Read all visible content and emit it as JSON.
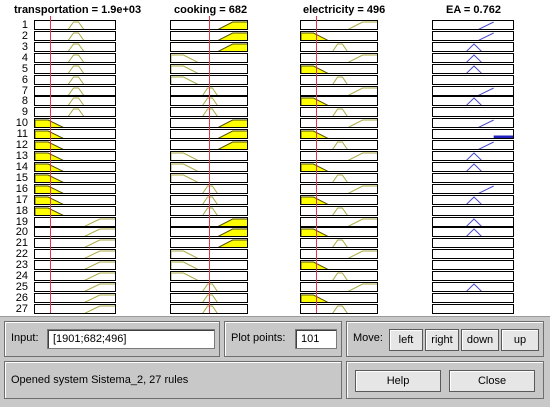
{
  "headers": {
    "transportation": "transportation = 1.9e+03",
    "cooking": "cooking = 682",
    "electricity": "electricity = 496",
    "ea": "EA = 0.762"
  },
  "rule_numbers": [
    "1",
    "2",
    "3",
    "4",
    "5",
    "6",
    "7",
    "8",
    "9",
    "10",
    "11",
    "12",
    "13",
    "14",
    "15",
    "16",
    "17",
    "18",
    "19",
    "20",
    "21",
    "22",
    "23",
    "24",
    "25",
    "26",
    "27"
  ],
  "input_value_fractions": {
    "transportation": 0.2,
    "cooking": 0.5,
    "electricity": 0.2
  },
  "rules": {
    "transportation_mf": [
      "M",
      "M",
      "M",
      "M",
      "M",
      "M",
      "M",
      "M",
      "M",
      "L",
      "L",
      "L",
      "L",
      "L",
      "L",
      "L",
      "L",
      "L",
      "H",
      "H",
      "H",
      "H",
      "H",
      "H",
      "H",
      "H",
      "H"
    ],
    "cooking_mf": [
      "H",
      "H",
      "H",
      "L",
      "L",
      "L",
      "M",
      "M",
      "M",
      "H",
      "H",
      "H",
      "L",
      "L",
      "L",
      "M",
      "M",
      "M",
      "H",
      "H",
      "H",
      "L",
      "L",
      "L",
      "M",
      "M",
      "M"
    ],
    "electricity_mf": [
      "H",
      "L",
      "M",
      "H",
      "L",
      "M",
      "H",
      "L",
      "M",
      "H",
      "L",
      "M",
      "H",
      "L",
      "M",
      "H",
      "L",
      "M",
      "H",
      "L",
      "M",
      "H",
      "L",
      "M",
      "H",
      "L",
      "M"
    ],
    "transportation_active": [
      0,
      0,
      0,
      0,
      0,
      0,
      0,
      0,
      0,
      1,
      1,
      1,
      1,
      1,
      1,
      1,
      1,
      1,
      0,
      0,
      0,
      0,
      0,
      0,
      0,
      0,
      0
    ],
    "cooking_active": [
      1,
      1,
      1,
      0,
      0,
      0,
      0,
      0,
      0,
      1,
      1,
      1,
      0,
      0,
      0,
      0,
      0,
      0,
      1,
      1,
      1,
      0,
      0,
      0,
      0,
      0,
      0
    ],
    "electricity_active": [
      0,
      1,
      0,
      0,
      1,
      0,
      0,
      1,
      0,
      0,
      1,
      0,
      0,
      1,
      0,
      0,
      1,
      0,
      0,
      1,
      0,
      0,
      1,
      0,
      0,
      1,
      0
    ],
    "ea_mf": [
      "H",
      "H",
      "M",
      "M",
      "M",
      "L",
      "H",
      "M",
      "L",
      "H",
      "H",
      "H",
      "M",
      "M",
      "L",
      "H",
      "M",
      "L",
      "M",
      "M",
      "L",
      "L",
      "L",
      "L",
      "M",
      "L",
      "L"
    ],
    "ea_active": [
      0,
      0,
      0,
      0,
      0,
      0,
      0,
      0,
      0,
      0,
      1,
      0,
      0,
      0,
      0,
      0,
      0,
      0,
      0,
      0,
      0,
      0,
      0,
      0,
      0,
      0,
      0
    ]
  },
  "panel": {
    "input_label": "Input:",
    "input_value": "[1901;682;496]",
    "plot_points_label": "Plot points:",
    "plot_points_value": "101",
    "move_label": "Move:",
    "left": "left",
    "right": "right",
    "down": "down",
    "up": "up",
    "status": "Opened system Sistema_2, 27 rules",
    "help": "Help",
    "close": "Close"
  },
  "colors": {
    "fill_yellow": "#ffff00",
    "mf_active": "#505000",
    "mf_inactive": "#aaaa44",
    "ea_line": "#4a4ad0",
    "ea_active": "#2020c0",
    "red_line": "#e8324a"
  }
}
